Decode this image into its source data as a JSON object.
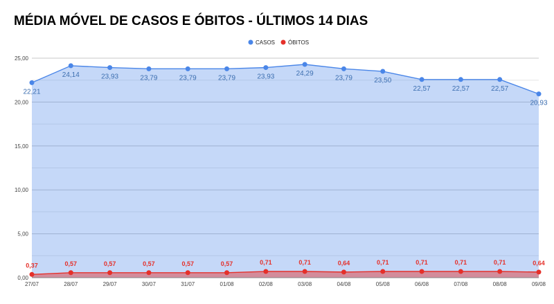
{
  "chart_data": {
    "type": "area",
    "title": "MÉDIA MÓVEL DE CASOS E ÓBITOS - ÚLTIMOS 14 DIAS",
    "categories": [
      "27/07",
      "28/07",
      "29/07",
      "30/07",
      "31/07",
      "01/08",
      "02/08",
      "03/08",
      "04/08",
      "05/08",
      "06/08",
      "07/08",
      "08/08",
      "09/08"
    ],
    "series": [
      {
        "name": "CASOS",
        "color": "#4a86e8",
        "values": [
          22.21,
          24.14,
          23.93,
          23.79,
          23.79,
          23.79,
          23.93,
          24.29,
          23.79,
          23.5,
          22.57,
          22.57,
          22.57,
          20.93
        ],
        "labels": [
          "22,21",
          "24,14",
          "23,93",
          "23,79",
          "23,79",
          "23,79",
          "23,93",
          "24,29",
          "23,79",
          "23,50",
          "22,57",
          "22,57",
          "22,57",
          "20,93"
        ]
      },
      {
        "name": "ÓBITOS",
        "color": "#e5302a",
        "values": [
          0.37,
          0.57,
          0.57,
          0.57,
          0.57,
          0.57,
          0.71,
          0.71,
          0.64,
          0.71,
          0.71,
          0.71,
          0.71,
          0.64
        ],
        "labels": [
          "0,37",
          "0,57",
          "0,57",
          "0,57",
          "0,57",
          "0,57",
          "0,71",
          "0,71",
          "0,64",
          "0,71",
          "0,71",
          "0,71",
          "0,71",
          "0,64"
        ]
      }
    ],
    "y_ticks": [
      "0,00",
      "5,00",
      "10,00",
      "15,00",
      "20,00",
      "25,00"
    ],
    "ylim": [
      0,
      25
    ],
    "grid": true,
    "legend_position": "top-center"
  }
}
